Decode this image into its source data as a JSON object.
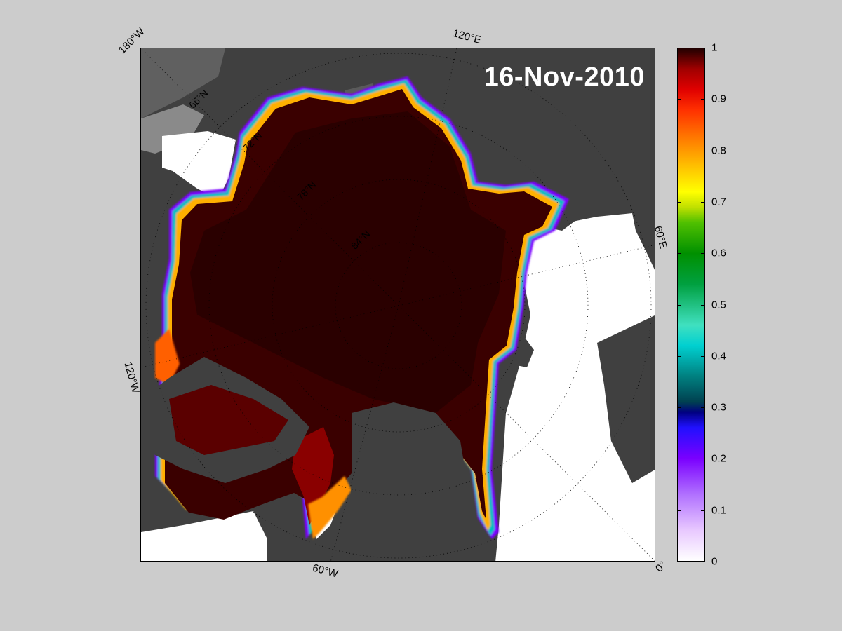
{
  "map": {
    "date": "16-Nov-2010",
    "longitude_labels": {
      "w180": "180°W",
      "e120": "120°E",
      "e60": "60°E",
      "w120": "120°W",
      "w60": "60°W",
      "zero": "0°"
    },
    "latitude_labels": [
      "66°N",
      "72°N",
      "78°N",
      "84°N"
    ],
    "colors": {
      "background": "#cccccc",
      "land": "#404040",
      "land_light": "#606060",
      "land_lighter": "#8a8a8a",
      "open_water": "#ffffff",
      "ice_full": "#2a0000"
    }
  },
  "colorbar": {
    "min": 0,
    "max": 1,
    "ticks": [
      "1",
      "0.9",
      "0.8",
      "0.7",
      "0.6",
      "0.5",
      "0.4",
      "0.3",
      "0.2",
      "0.1",
      "0"
    ],
    "tick_values": [
      1,
      0.9,
      0.8,
      0.7,
      0.6,
      0.5,
      0.4,
      0.3,
      0.2,
      0.1,
      0
    ]
  }
}
